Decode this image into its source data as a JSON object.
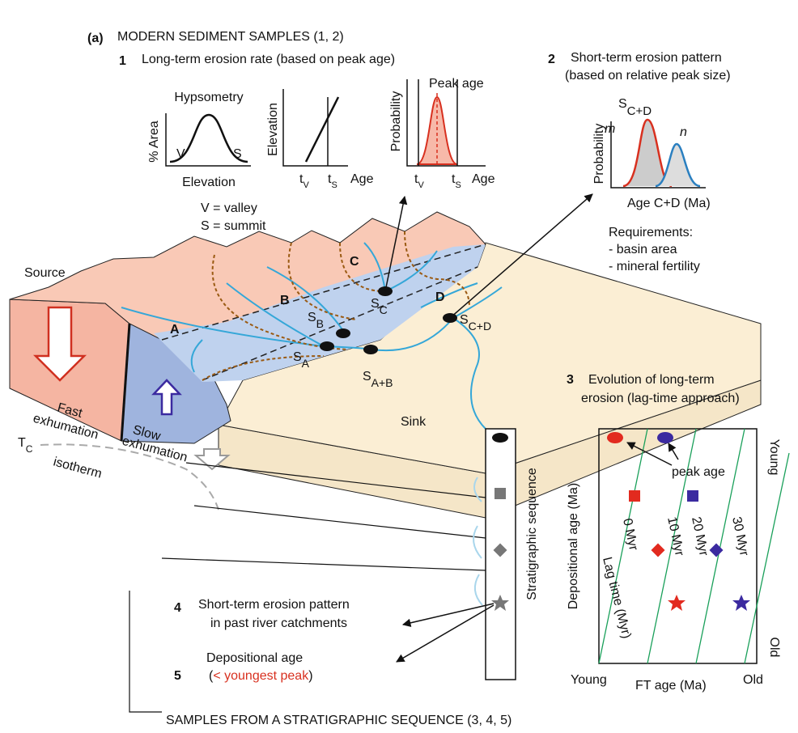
{
  "header": {
    "panel": "(a)",
    "title": "MODERN SEDIMENT SAMPLES (1, 2)"
  },
  "section1": {
    "number": "1",
    "title": "Long-term erosion rate (based on peak age)",
    "hypsometry": {
      "title": "Hypsometry",
      "y_label": "% Area",
      "left": "V",
      "right": "S",
      "x_label": "Elevation",
      "legend": [
        "V = valley",
        "S = summit"
      ]
    },
    "elevation_plot": {
      "y_label": "Elevation",
      "tick1": {
        "main": "t",
        "sub": "V"
      },
      "tick2": {
        "main": "t",
        "sub": "S"
      },
      "x_label": "Age"
    },
    "probability_plot": {
      "y_label": "Probability",
      "annotation": "Peak age",
      "tick1": {
        "main": "t",
        "sub": "V"
      },
      "tick2": {
        "main": "t",
        "sub": "S"
      },
      "x_label": "Age"
    }
  },
  "section2": {
    "number": "2",
    "title": [
      "Short-term erosion pattern",
      "(based on relative peak size)"
    ],
    "plot": {
      "title": {
        "main": "S",
        "sub": "C+D"
      },
      "peak1": "m",
      "peak2": "n",
      "y_label": "Probability",
      "x_label": "Age C+D (Ma)"
    },
    "requirements": [
      "Requirements:",
      "- basin area",
      "- mineral fertility"
    ]
  },
  "block": {
    "source": "Source",
    "fast": [
      "Fast",
      "exhumation"
    ],
    "slow": [
      "Slow",
      "exhumation"
    ],
    "tc": {
      "main": "T",
      "sub": "C"
    },
    "isotherm": "isotherm",
    "catchments": [
      "A",
      "B",
      "C",
      "D"
    ],
    "samples": [
      {
        "main": "S",
        "sub": "A"
      },
      {
        "main": "S",
        "sub": "B"
      },
      {
        "main": "S",
        "sub": "C"
      },
      {
        "main": "S",
        "sub": "C+D"
      },
      {
        "main": "S",
        "sub": "A+B"
      }
    ],
    "sink": "Sink",
    "column": "Stratigraphic sequence"
  },
  "section3": {
    "number": "3",
    "title": [
      "Evolution of long-term",
      "erosion (lag-time approach)"
    ],
    "plot": {
      "y_label": "Depositional age (Ma)",
      "y_top": "Young",
      "y_bottom": "Old",
      "x_label": "FT age (Ma)",
      "x_left": "Young",
      "x_right": "Old",
      "annotation": "peak age",
      "lines": [
        "0 Myr",
        "10 Myr",
        "20 Myr",
        "30 Myr"
      ],
      "lag_label": "Lag time (Myr)"
    }
  },
  "section4": {
    "number": "4",
    "text": [
      "Short-term erosion pattern",
      "in past river catchments"
    ]
  },
  "section5": {
    "number": "5",
    "text": "Depositional age",
    "open": "(",
    "highlight": "< youngest peak",
    "close": ")"
  },
  "footer": {
    "title": "SAMPLES FROM A STRATIGRAPHIC SEQUENCE (3, 4, 5)"
  }
}
